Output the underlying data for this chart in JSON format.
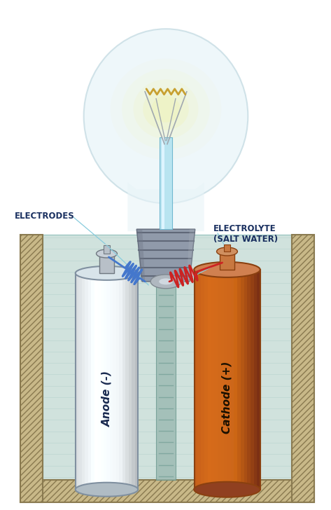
{
  "bg_color": "#ffffff",
  "label_electrodes": "ELECTRODES",
  "label_electrolyte": "ELECTROLYTE\n(SALT WATER)",
  "label_anode": "Anode (-)",
  "label_cathode": "Cathode (+)",
  "wire_blue": "#4477cc",
  "wire_red": "#cc2222",
  "annotation_color": "#1a3060",
  "ann_line_color": "#88ccdd",
  "wall_fc": "#c8b888",
  "wall_ec": "#8a7a50",
  "water_fc": "#c8ddd8",
  "membrane_fc": "#9ab8b0",
  "membrane_ec": "#6a9890",
  "anode_fc_l": "#e8eef0",
  "anode_fc_r": "#a0b0b8",
  "anode_ec": "#8090a0",
  "cathode_fc_l": "#d4855a",
  "cathode_fc_r": "#8a3510",
  "cathode_ec": "#8a4010",
  "bolt_a_fc": "#b8c0c8",
  "bolt_c_fc": "#c87840",
  "bulb_glass_fc": "#e8f4f8",
  "bulb_glass_ec": "#c0d8e0",
  "bulb_base_fc": "#909aaa",
  "bulb_base_ec": "#606878",
  "glow_colors": [
    "#ffff00",
    "#ffee00",
    "#ffdd00",
    "#ffcc00"
  ],
  "filament_color": "#c8a030",
  "stem_color": "#88c8d8"
}
